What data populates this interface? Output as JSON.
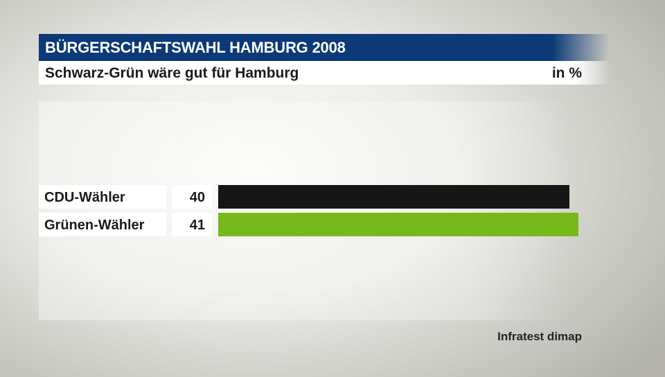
{
  "header": {
    "title": "BÜRGERSCHAFTSWAHL HAMBURG 2008",
    "subtitle": "Schwarz-Grün wäre gut für Hamburg",
    "unit": "in %"
  },
  "chart_data": {
    "type": "bar",
    "orientation": "horizontal",
    "title": "BÜRGERSCHAFTSWAHL HAMBURG 2008",
    "subtitle": "Schwarz-Grün wäre gut für Hamburg",
    "unit": "in %",
    "categories": [
      "CDU-Wähler",
      "Grünen-Wähler"
    ],
    "values": [
      40,
      41
    ],
    "value_labels": [
      "40",
      "41"
    ],
    "colors": [
      "#161616",
      "#77b91a"
    ],
    "xlim": [
      0,
      41
    ],
    "grid": false,
    "legend": "none"
  },
  "footer": {
    "source": "Infratest dimap"
  }
}
